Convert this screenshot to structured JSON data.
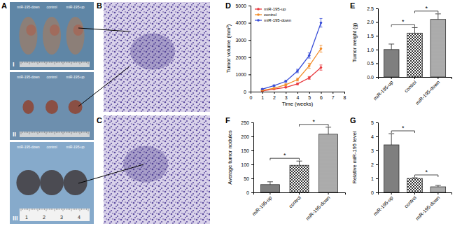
{
  "panel_letters": [
    "A",
    "B",
    "C",
    "D",
    "E",
    "F",
    "G"
  ],
  "photos": {
    "rows": [
      {
        "numeral": "I",
        "labels": [
          "miR-195-down",
          "control",
          "miR-195-up"
        ]
      },
      {
        "numeral": "II",
        "labels": [
          "miR-195-down",
          "control",
          "miR-195-up"
        ]
      },
      {
        "numeral": "III",
        "labels": [
          "miR-195-down",
          "control",
          "miR-195-up"
        ]
      }
    ],
    "ruler_numbers": [
      "1",
      "2",
      "3",
      "4"
    ]
  },
  "chart_data": [
    {
      "type": "line",
      "x_label": "Time (weeks)",
      "y_label": "Tumor volume (mm³)",
      "x": [
        1,
        2,
        3,
        4,
        5,
        6
      ],
      "xlim": [
        0,
        8
      ],
      "xticks": [
        0,
        1,
        2,
        3,
        4,
        5,
        6,
        7,
        8
      ],
      "ylim": [
        0,
        5000
      ],
      "yticks": [
        0,
        1000,
        2000,
        3000,
        4000,
        5000
      ],
      "grid": false,
      "legend": "upper left",
      "marker": "circle",
      "series": [
        {
          "name": "miR-195-up",
          "color": "#e8383d",
          "values": [
            50,
            150,
            250,
            450,
            800,
            1400
          ],
          "errors": [
            10,
            20,
            30,
            50,
            80,
            150
          ]
        },
        {
          "name": "control",
          "color": "#f28c28",
          "values": [
            80,
            200,
            400,
            700,
            1500,
            2500
          ],
          "errors": [
            15,
            30,
            50,
            80,
            150,
            200
          ]
        },
        {
          "name": "miR-195-down",
          "color": "#3a4fd8",
          "values": [
            150,
            350,
            600,
            1200,
            2100,
            4000
          ],
          "errors": [
            20,
            40,
            60,
            100,
            150,
            250
          ]
        }
      ]
    },
    {
      "type": "bar",
      "y_label": "Tumor weight (g)",
      "categories": [
        "miR-195-up",
        "control",
        "miR-195-down"
      ],
      "values": [
        1.0,
        1.6,
        2.1
      ],
      "errors": [
        0.2,
        0.2,
        0.2
      ],
      "colors": [
        "#7f7f7f",
        "#ffffff",
        "#ffffff"
      ],
      "ylim": [
        0,
        2.5
      ],
      "yticks": [
        {
          "value": 0,
          "label": "0.0"
        },
        {
          "value": 0.5,
          "label": "0.5"
        },
        {
          "value": 1,
          "label": "1.0"
        },
        {
          "value": 1.5,
          "label": "1.5"
        },
        {
          "value": 2,
          "label": "2.0"
        },
        {
          "value": 2.5,
          "label": "2.5"
        }
      ],
      "grid": false,
      "annotations": [
        {
          "from": 0,
          "to": 1,
          "text": "*"
        },
        {
          "from": 1,
          "to": 2,
          "text": "*"
        }
      ]
    },
    {
      "type": "bar",
      "y_label": "Average tumor nodules",
      "categories": [
        "miR-195-up",
        "control",
        "miR-195-down"
      ],
      "values": [
        28,
        97,
        208
      ],
      "errors": [
        10,
        15,
        25
      ],
      "colors": [
        "#7f7f7f",
        "#ffffff",
        "#ffffff"
      ],
      "ylim": [
        0,
        250
      ],
      "yticks": [
        0,
        50,
        100,
        150,
        200,
        250
      ],
      "grid": false,
      "annotations": [
        {
          "from": 0,
          "to": 1,
          "text": "*"
        },
        {
          "from": 1,
          "to": 2,
          "text": "*"
        }
      ]
    },
    {
      "type": "bar",
      "y_label": "Relative miR-195 level",
      "categories": [
        "miR-195-up",
        "control",
        "miR-195-down"
      ],
      "values": [
        3.4,
        1.0,
        0.4
      ],
      "errors": [
        0.8,
        0.05,
        0.1
      ],
      "colors": [
        "#7f7f7f",
        "#ffffff",
        "#ffffff"
      ],
      "ylim": [
        0,
        5
      ],
      "yticks": [
        0,
        1,
        2,
        3,
        4,
        5
      ],
      "grid": false,
      "annotations": [
        {
          "from": 0,
          "to": 1,
          "text": "*"
        },
        {
          "from": 1,
          "to": 2,
          "text": "*"
        }
      ]
    }
  ]
}
